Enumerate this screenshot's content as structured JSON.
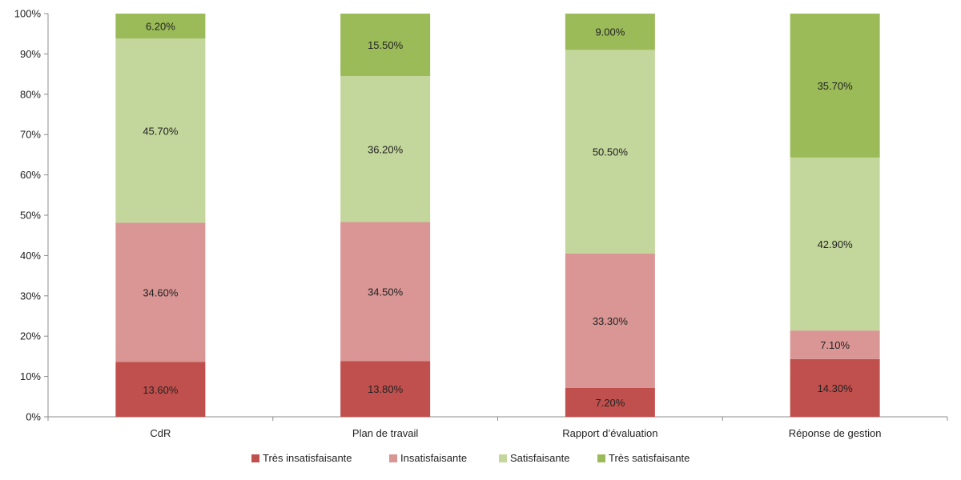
{
  "chart_data": {
    "type": "bar",
    "stacked": true,
    "percent_axis": true,
    "categories": [
      "CdR",
      "Plan de travail",
      "Rapport d’évaluation",
      "Réponse de gestion"
    ],
    "series": [
      {
        "name": "Très insatisfaisante",
        "color": "#C0504D",
        "values": [
          13.6,
          13.8,
          7.2,
          14.3
        ],
        "labels": [
          "13.60%",
          "13.80%",
          "7.20%",
          "14.30%"
        ]
      },
      {
        "name": "Insatisfaisante",
        "color": "#D99694",
        "values": [
          34.6,
          34.5,
          33.3,
          7.1
        ],
        "labels": [
          "34.60%",
          "34.50%",
          "33.30%",
          "7.10%"
        ]
      },
      {
        "name": "Satisfaisante",
        "color": "#C3D69B",
        "values": [
          45.7,
          36.2,
          50.5,
          42.9
        ],
        "labels": [
          "45.70%",
          "36.20%",
          "50.50%",
          "42.90%"
        ]
      },
      {
        "name": "Très satisfaisante",
        "color": "#9BBB59",
        "values": [
          6.2,
          15.5,
          9.0,
          35.7
        ],
        "labels": [
          "6.20%",
          "15.50%",
          "9.00%",
          "35.70%"
        ]
      }
    ],
    "ylim": [
      0,
      100
    ],
    "yticks": [
      "0%",
      "10%",
      "20%",
      "30%",
      "40%",
      "50%",
      "60%",
      "70%",
      "80%",
      "90%",
      "100%"
    ],
    "grid": false,
    "legend_position": "bottom"
  }
}
